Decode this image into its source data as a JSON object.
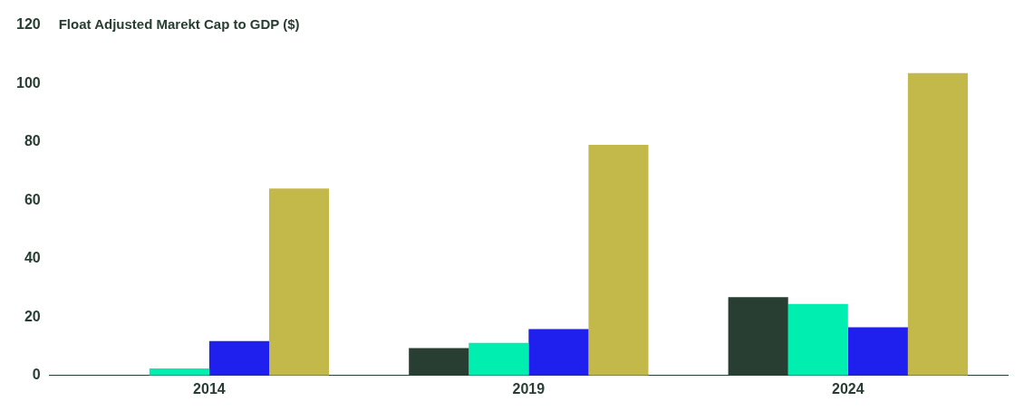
{
  "chart_data": {
    "type": "bar",
    "title": "Float Adjusted Marekt Cap to GDP ($)",
    "categories": [
      "2014",
      "2019",
      "2024"
    ],
    "series": [
      {
        "color": "#283e33",
        "values": [
          0,
          9.4,
          26.8
        ]
      },
      {
        "color": "#00efb0",
        "values": [
          2.4,
          11.2,
          24.5
        ]
      },
      {
        "color": "#2020ee",
        "values": [
          11.8,
          15.9,
          16.5
        ]
      },
      {
        "color": "#c3b84a",
        "values": [
          64,
          79,
          103.5
        ]
      }
    ],
    "ylim": [
      0,
      120
    ],
    "yticks": [
      0,
      20,
      40,
      60,
      80,
      100,
      120
    ],
    "grid": false,
    "legend": false
  }
}
